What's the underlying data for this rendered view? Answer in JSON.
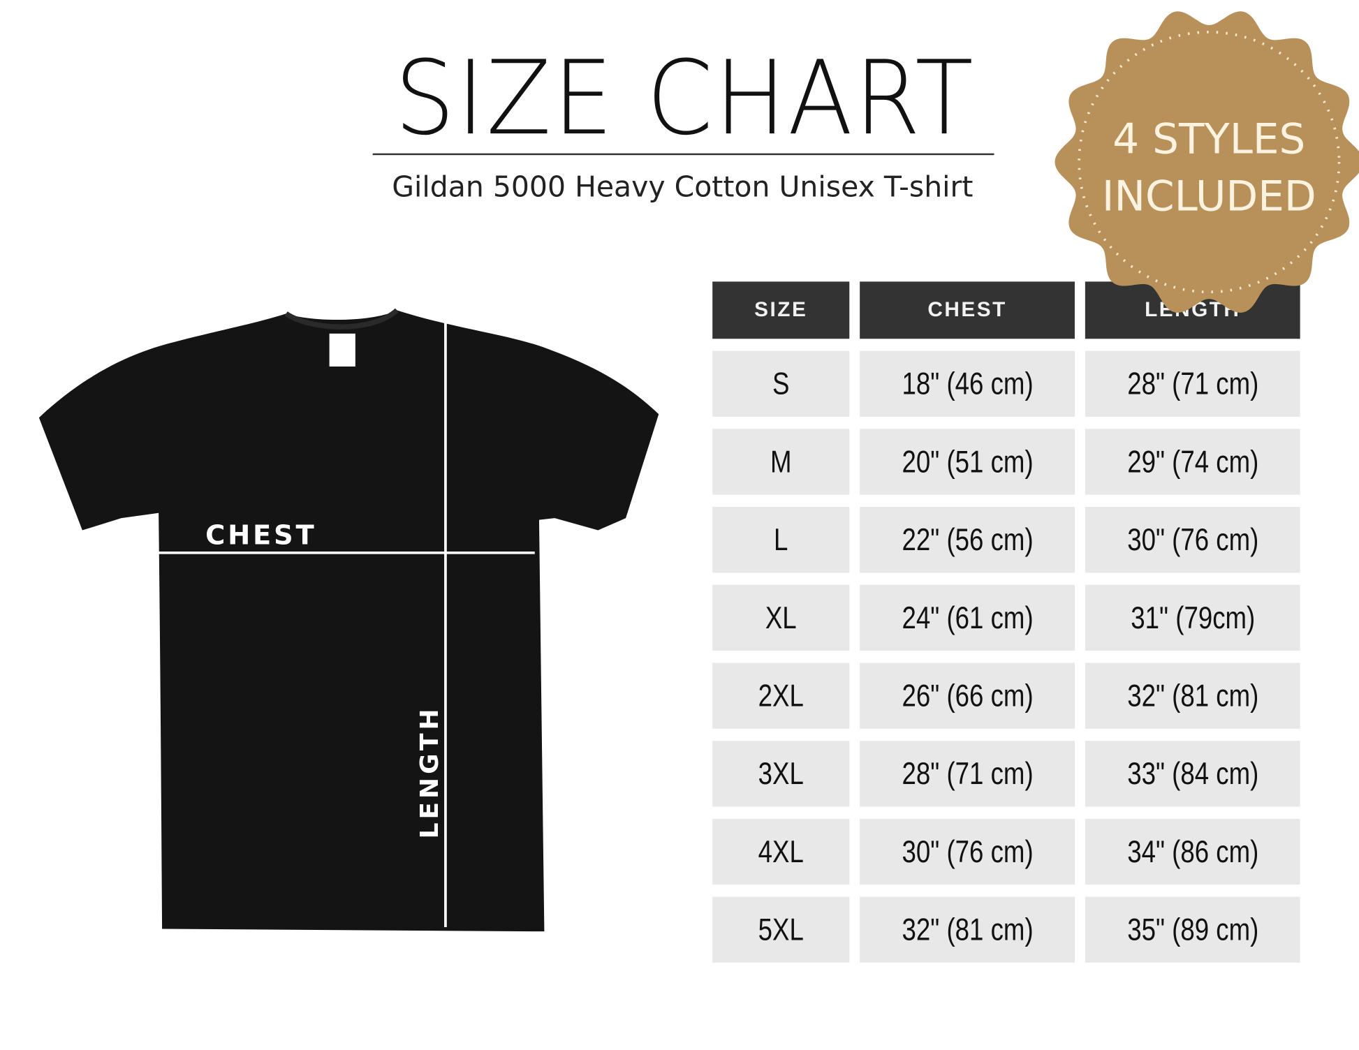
{
  "header": {
    "title": "SIZE CHART",
    "subtitle": "Gildan 5000 Heavy Cotton Unisex T-shirt"
  },
  "badge": {
    "line1": "4 STYLES",
    "line2": "INCLUDED",
    "color": "#b8915a"
  },
  "diagram": {
    "chest_label": "CHEST",
    "length_label": "LENGTH",
    "shirt_color": "#141414"
  },
  "table": {
    "headers": [
      "SIZE",
      "CHEST",
      "LENGTH"
    ],
    "rows": [
      [
        "S",
        "18\" (46 cm)",
        "28\" (71 cm)"
      ],
      [
        "M",
        "20\" (51 cm)",
        "29\" (74 cm)"
      ],
      [
        "L",
        "22\" (56 cm)",
        "30\" (76 cm)"
      ],
      [
        "XL",
        "24\" (61 cm)",
        "31\" (79cm)"
      ],
      [
        "2XL",
        "26\" (66 cm)",
        "32\" (81 cm)"
      ],
      [
        "3XL",
        "28\" (71 cm)",
        "33\" (84 cm)"
      ],
      [
        "4XL",
        "30\" (76 cm)",
        "34\" (86 cm)"
      ],
      [
        "5XL",
        "32\" (81 cm)",
        "35\" (89 cm)"
      ]
    ]
  }
}
